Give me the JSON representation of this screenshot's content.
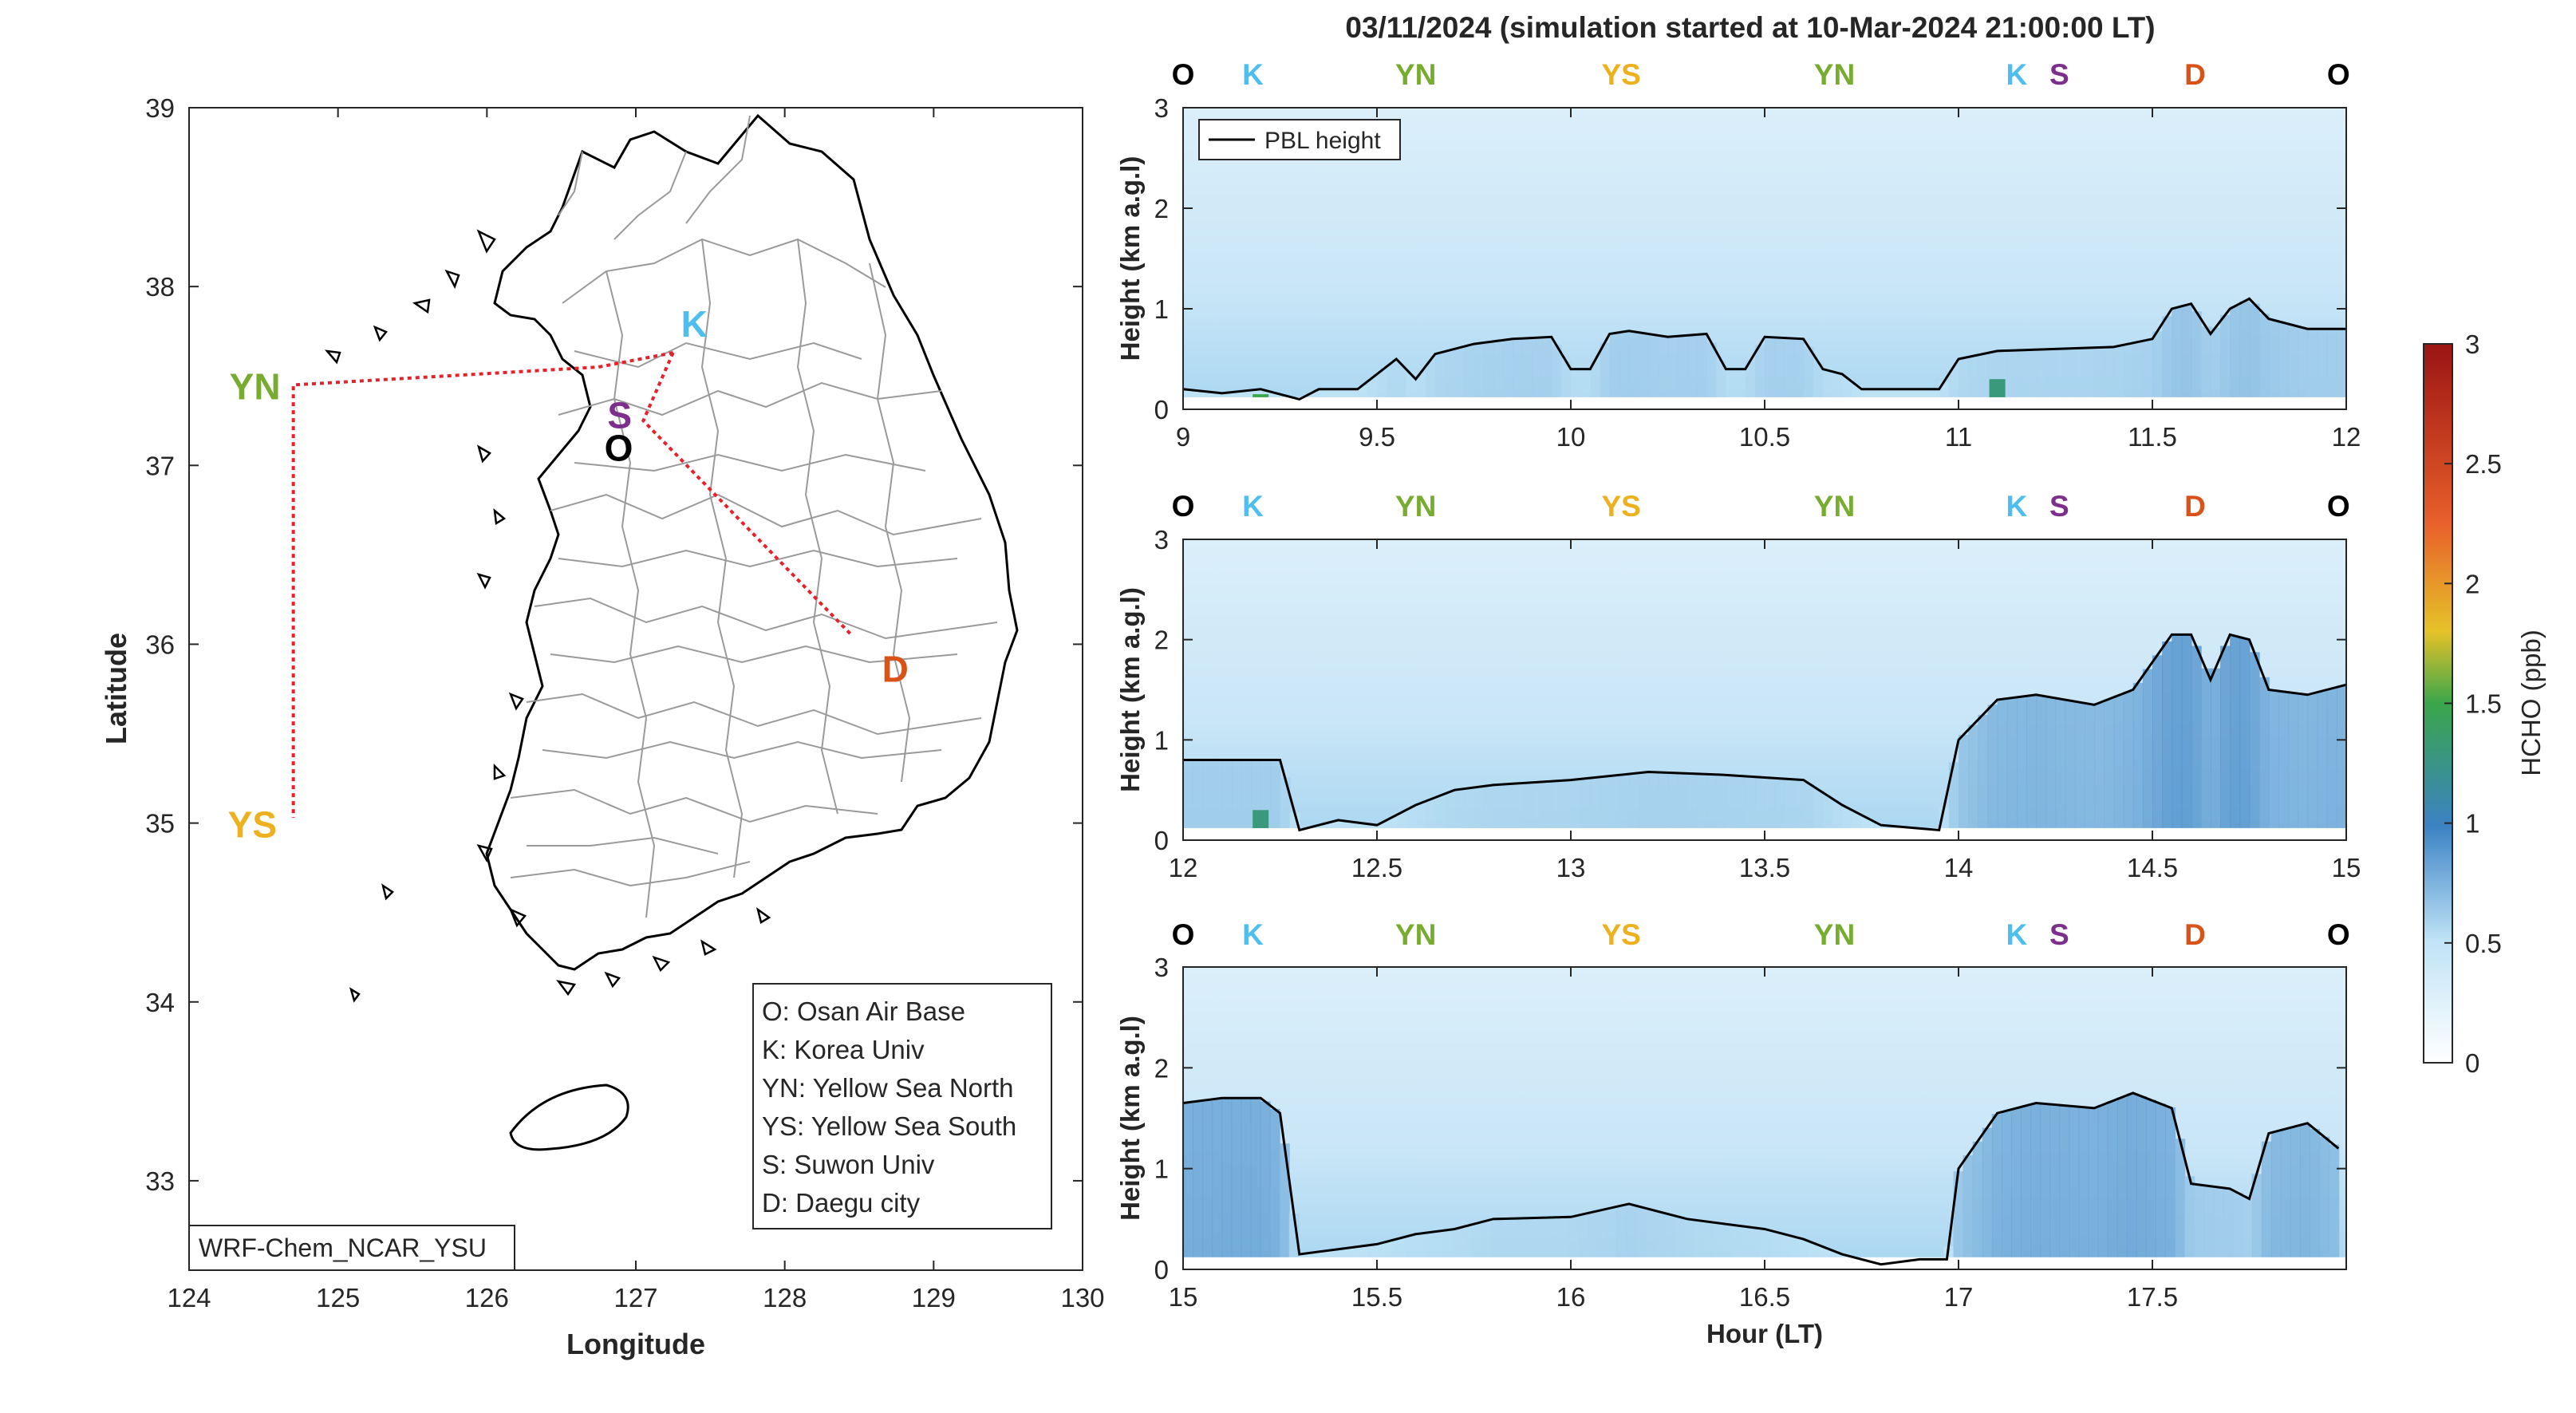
{
  "title": "03/11/2024 (simulation started at 10-Mar-2024 21:00:00 LT)",
  "colors": {
    "O": "#000000",
    "K": "#4DBEEE",
    "YN": "#77AC30",
    "YS": "#EDB120",
    "S": "#7E2F8E",
    "D": "#D95319",
    "route": "#E8202A",
    "pbl": "#000000"
  },
  "map": {
    "xlabel": "Longitude",
    "ylabel": "Latitude",
    "xticks": [
      "124",
      "125",
      "126",
      "127",
      "128",
      "129",
      "130"
    ],
    "yticks": [
      "33",
      "34",
      "35",
      "36",
      "37",
      "38",
      "39"
    ],
    "xlim": [
      124,
      130
    ],
    "ylim": [
      32.5,
      39
    ],
    "model_label": "WRF-Chem_NCAR_YSU",
    "sites": [
      {
        "code": "K",
        "lon": 127.25,
        "lat": 37.63
      },
      {
        "code": "S",
        "lon": 126.97,
        "lat": 37.29
      },
      {
        "code": "O",
        "lon": 127.03,
        "lat": 37.08
      },
      {
        "code": "YN",
        "lon": 124.7,
        "lat": 37.45
      },
      {
        "code": "YS",
        "lon": 124.7,
        "lat": 35.0
      },
      {
        "code": "D",
        "lon": 128.6,
        "lat": 35.87
      }
    ],
    "route": [
      [
        127.25,
        37.63
      ],
      [
        126.75,
        37.55
      ],
      [
        124.7,
        37.45
      ],
      [
        124.7,
        35.03
      ]
    ],
    "route2": [
      [
        127.25,
        37.63
      ],
      [
        127.05,
        37.25
      ],
      [
        128.45,
        36.05
      ]
    ],
    "legend": [
      "O: Osan Air Base",
      "K: Korea Univ",
      "YN: Yellow Sea North",
      "YS: Yellow Sea South",
      "S: Suwon Univ",
      "D: Daegu city"
    ]
  },
  "chart_data": [
    {
      "type": "heatmap",
      "panel": 1,
      "xlabel": "",
      "ylabel": "Height (km a.g.l)",
      "xlim": [
        9,
        12
      ],
      "ylim": [
        0,
        3
      ],
      "xticks": [
        "9",
        "9.5",
        "10",
        "10.5",
        "11",
        "11.5",
        "12"
      ],
      "yticks": [
        "0",
        "1",
        "2",
        "3"
      ],
      "legend": "PBL height",
      "site_markers": [
        {
          "code": "O",
          "x": 9.0
        },
        {
          "code": "K",
          "x": 9.18
        },
        {
          "code": "YN",
          "x": 9.6
        },
        {
          "code": "YS",
          "x": 10.13
        },
        {
          "code": "YN",
          "x": 10.68
        },
        {
          "code": "K",
          "x": 11.15
        },
        {
          "code": "S",
          "x": 11.26
        },
        {
          "code": "D",
          "x": 11.61
        },
        {
          "code": "O",
          "x": 11.98
        }
      ],
      "pbl_height": [
        [
          9.0,
          0.2
        ],
        [
          9.1,
          0.16
        ],
        [
          9.2,
          0.2
        ],
        [
          9.3,
          0.1
        ],
        [
          9.35,
          0.2
        ],
        [
          9.45,
          0.2
        ],
        [
          9.5,
          0.35
        ],
        [
          9.55,
          0.5
        ],
        [
          9.6,
          0.3
        ],
        [
          9.65,
          0.55
        ],
        [
          9.75,
          0.65
        ],
        [
          9.85,
          0.7
        ],
        [
          9.95,
          0.72
        ],
        [
          10.0,
          0.4
        ],
        [
          10.05,
          0.4
        ],
        [
          10.1,
          0.75
        ],
        [
          10.15,
          0.78
        ],
        [
          10.25,
          0.72
        ],
        [
          10.35,
          0.75
        ],
        [
          10.4,
          0.4
        ],
        [
          10.45,
          0.4
        ],
        [
          10.5,
          0.72
        ],
        [
          10.6,
          0.7
        ],
        [
          10.65,
          0.4
        ],
        [
          10.7,
          0.35
        ],
        [
          10.75,
          0.2
        ],
        [
          10.85,
          0.2
        ],
        [
          10.95,
          0.2
        ],
        [
          11.0,
          0.5
        ],
        [
          11.1,
          0.58
        ],
        [
          11.25,
          0.6
        ],
        [
          11.4,
          0.62
        ],
        [
          11.5,
          0.7
        ],
        [
          11.55,
          1.0
        ],
        [
          11.6,
          1.05
        ],
        [
          11.65,
          0.75
        ],
        [
          11.7,
          1.0
        ],
        [
          11.75,
          1.1
        ],
        [
          11.8,
          0.9
        ],
        [
          11.9,
          0.8
        ],
        [
          12.0,
          0.8
        ]
      ],
      "hcho_hotspots": [
        {
          "x": 9.2,
          "h": 0.15,
          "ppb": 1.5
        },
        {
          "x": 11.1,
          "h": 0.3,
          "ppb": 1.3
        }
      ]
    },
    {
      "type": "heatmap",
      "panel": 2,
      "xlabel": "",
      "ylabel": "Height (km a.g.l)",
      "xlim": [
        12,
        15
      ],
      "ylim": [
        0,
        3
      ],
      "xticks": [
        "12",
        "12.5",
        "13",
        "13.5",
        "14",
        "14.5",
        "15"
      ],
      "yticks": [
        "0",
        "1",
        "2",
        "3"
      ],
      "site_markers": [
        {
          "code": "O",
          "x": 12.0
        },
        {
          "code": "K",
          "x": 12.18
        },
        {
          "code": "YN",
          "x": 12.6
        },
        {
          "code": "YS",
          "x": 13.13
        },
        {
          "code": "YN",
          "x": 13.68
        },
        {
          "code": "K",
          "x": 14.15
        },
        {
          "code": "S",
          "x": 14.26
        },
        {
          "code": "D",
          "x": 14.61
        },
        {
          "code": "O",
          "x": 14.98
        }
      ],
      "pbl_height": [
        [
          12.0,
          0.8
        ],
        [
          12.25,
          0.8
        ],
        [
          12.3,
          0.1
        ],
        [
          12.4,
          0.2
        ],
        [
          12.5,
          0.15
        ],
        [
          12.6,
          0.35
        ],
        [
          12.7,
          0.5
        ],
        [
          12.8,
          0.55
        ],
        [
          13.0,
          0.6
        ],
        [
          13.2,
          0.68
        ],
        [
          13.4,
          0.65
        ],
        [
          13.6,
          0.6
        ],
        [
          13.7,
          0.35
        ],
        [
          13.8,
          0.15
        ],
        [
          13.95,
          0.1
        ],
        [
          14.0,
          1.0
        ],
        [
          14.1,
          1.4
        ],
        [
          14.2,
          1.45
        ],
        [
          14.35,
          1.35
        ],
        [
          14.45,
          1.5
        ],
        [
          14.55,
          2.05
        ],
        [
          14.6,
          2.05
        ],
        [
          14.65,
          1.6
        ],
        [
          14.7,
          2.05
        ],
        [
          14.75,
          2.0
        ],
        [
          14.8,
          1.5
        ],
        [
          14.9,
          1.45
        ],
        [
          15.0,
          1.55
        ]
      ],
      "hcho_hotspots": [
        {
          "x": 12.2,
          "h": 0.3,
          "ppb": 1.3
        }
      ]
    },
    {
      "type": "heatmap",
      "panel": 3,
      "xlabel": "Hour (LT)",
      "ylabel": "Height (km a.g.l)",
      "xlim": [
        15,
        18
      ],
      "ylim": [
        0,
        3
      ],
      "xticks": [
        "15",
        "15.5",
        "16",
        "16.5",
        "17",
        "17.5"
      ],
      "yticks": [
        "0",
        "1",
        "2",
        "3"
      ],
      "site_markers": [
        {
          "code": "O",
          "x": 15.0
        },
        {
          "code": "K",
          "x": 15.18
        },
        {
          "code": "YN",
          "x": 15.6
        },
        {
          "code": "YS",
          "x": 16.13
        },
        {
          "code": "YN",
          "x": 16.68
        },
        {
          "code": "K",
          "x": 17.15
        },
        {
          "code": "S",
          "x": 17.26
        },
        {
          "code": "D",
          "x": 17.61
        },
        {
          "code": "O",
          "x": 17.98
        }
      ],
      "pbl_height": [
        [
          15.0,
          1.65
        ],
        [
          15.1,
          1.7
        ],
        [
          15.2,
          1.7
        ],
        [
          15.25,
          1.55
        ],
        [
          15.3,
          0.15
        ],
        [
          15.4,
          0.2
        ],
        [
          15.5,
          0.25
        ],
        [
          15.6,
          0.35
        ],
        [
          15.7,
          0.4
        ],
        [
          15.8,
          0.5
        ],
        [
          16.0,
          0.52
        ],
        [
          16.15,
          0.65
        ],
        [
          16.3,
          0.5
        ],
        [
          16.5,
          0.4
        ],
        [
          16.6,
          0.3
        ],
        [
          16.7,
          0.15
        ],
        [
          16.8,
          0.05
        ],
        [
          16.9,
          0.1
        ],
        [
          16.97,
          0.1
        ],
        [
          17.0,
          1.0
        ],
        [
          17.1,
          1.55
        ],
        [
          17.2,
          1.65
        ],
        [
          17.35,
          1.6
        ],
        [
          17.45,
          1.75
        ],
        [
          17.55,
          1.6
        ],
        [
          17.6,
          0.85
        ],
        [
          17.7,
          0.8
        ],
        [
          17.75,
          0.7
        ],
        [
          17.8,
          1.35
        ],
        [
          17.9,
          1.45
        ],
        [
          17.98,
          1.2
        ]
      ],
      "hcho_hotspots": []
    }
  ],
  "colorbar": {
    "label": "HCHO (ppb)",
    "ticks": [
      "0",
      "0.5",
      "1",
      "1.5",
      "2",
      "2.5",
      "3"
    ],
    "range": [
      0,
      3
    ]
  }
}
